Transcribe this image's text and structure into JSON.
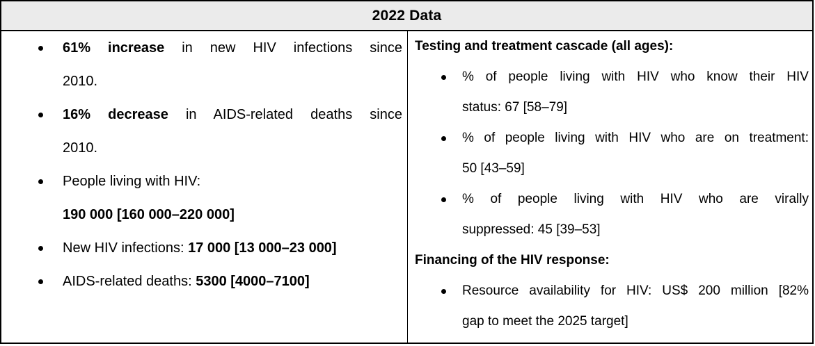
{
  "header": {
    "title": "2022 Data"
  },
  "colors": {
    "border": "#000000",
    "header_bg": "#ebebeb",
    "text": "#000000",
    "background": "#ffffff"
  },
  "left_column": {
    "bullets": [
      {
        "lines": [
          {
            "stretch": true,
            "runs": [
              {
                "b": true,
                "t": "61% increase"
              },
              {
                "b": false,
                "t": " in new HIV infections since"
              }
            ]
          },
          {
            "stretch": false,
            "runs": [
              {
                "b": false,
                "t": "2010."
              }
            ]
          }
        ]
      },
      {
        "lines": [
          {
            "stretch": true,
            "runs": [
              {
                "b": true,
                "t": "16% decrease"
              },
              {
                "b": false,
                "t": " in AIDS-related deaths since"
              }
            ]
          },
          {
            "stretch": false,
            "runs": [
              {
                "b": false,
                "t": "2010."
              }
            ]
          }
        ]
      },
      {
        "lines": [
          {
            "stretch": false,
            "runs": [
              {
                "b": false,
                "t": "People living with HIV:"
              }
            ]
          },
          {
            "stretch": false,
            "runs": [
              {
                "b": true,
                "t": "190 000 [160 000–220 000]"
              }
            ]
          }
        ]
      },
      {
        "lines": [
          {
            "stretch": false,
            "runs": [
              {
                "b": false,
                "t": "New HIV infections: "
              },
              {
                "b": true,
                "t": "17 000 [13 000–23 000]"
              }
            ]
          }
        ]
      },
      {
        "lines": [
          {
            "stretch": false,
            "runs": [
              {
                "b": false,
                "t": "AIDS-related deaths: "
              },
              {
                "b": true,
                "t": "5300 [4000–7100]"
              }
            ]
          }
        ]
      }
    ]
  },
  "right_column": {
    "sections": [
      {
        "heading": "Testing and treatment cascade (all ages):",
        "bullets": [
          {
            "lines": [
              {
                "stretch": true,
                "runs": [
                  {
                    "b": false,
                    "t": "% of people living with HIV who know their HIV"
                  }
                ]
              },
              {
                "stretch": false,
                "runs": [
                  {
                    "b": false,
                    "t": "status: 67 [58–79]"
                  }
                ]
              }
            ]
          },
          {
            "lines": [
              {
                "stretch": true,
                "runs": [
                  {
                    "b": false,
                    "t": "% of people living with HIV who are on treatment:"
                  }
                ]
              },
              {
                "stretch": false,
                "runs": [
                  {
                    "b": false,
                    "t": "50 [43–59]"
                  }
                ]
              }
            ]
          },
          {
            "lines": [
              {
                "stretch": true,
                "runs": [
                  {
                    "b": false,
                    "t": "% of people living with HIV who are virally"
                  }
                ]
              },
              {
                "stretch": false,
                "runs": [
                  {
                    "b": false,
                    "t": "suppressed: 45 [39–53]"
                  }
                ]
              }
            ]
          }
        ]
      },
      {
        "heading": "Financing of the HIV response:",
        "bullets": [
          {
            "lines": [
              {
                "stretch": true,
                "runs": [
                  {
                    "b": false,
                    "t": "Resource availability for HIV: US$ 200 million [82%"
                  }
                ]
              },
              {
                "stretch": false,
                "runs": [
                  {
                    "b": false,
                    "t": "gap to meet the 2025 target]"
                  }
                ]
              }
            ]
          }
        ]
      }
    ]
  }
}
